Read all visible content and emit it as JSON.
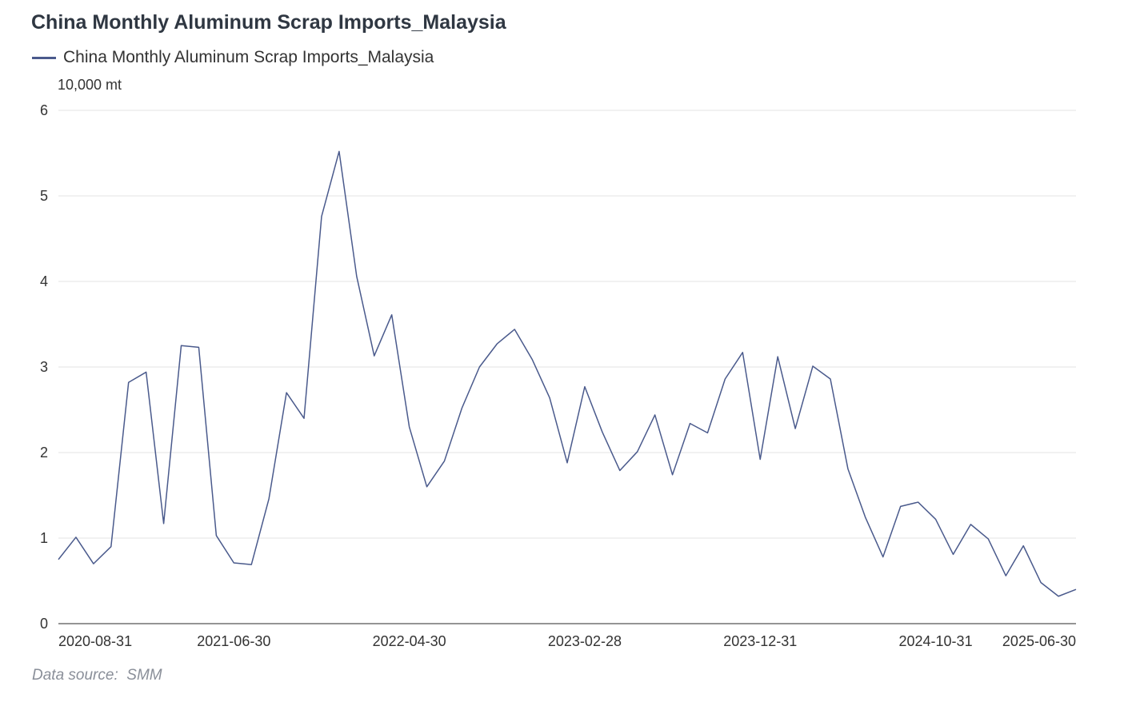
{
  "title": "China Monthly Aluminum Scrap Imports_Malaysia",
  "legend": {
    "label": "China Monthly Aluminum Scrap Imports_Malaysia"
  },
  "y_unit": "10,000 mt",
  "source": {
    "label": "Data source:",
    "value": "SMM"
  },
  "colors": {
    "series": "#4a5a8c",
    "grid": "#e3e3e3",
    "axis": "#555555"
  },
  "chart_data": {
    "type": "line",
    "title": "China Monthly Aluminum Scrap Imports_Malaysia",
    "ylabel": "10,000 mt",
    "ylim": [
      0,
      6
    ],
    "yticks": [
      0,
      1,
      2,
      3,
      4,
      5,
      6
    ],
    "grid": true,
    "legend_position": "top-left",
    "x_tick_labels": [
      "2020-08-31",
      "2021-06-30",
      "2022-04-30",
      "2023-02-28",
      "2023-12-31",
      "2024-10-31",
      "2025-06-30"
    ],
    "x": [
      "2020-08-31",
      "2020-09-30",
      "2020-10-31",
      "2020-11-30",
      "2020-12-31",
      "2021-01-31",
      "2021-02-28",
      "2021-03-31",
      "2021-04-30",
      "2021-05-31",
      "2021-06-30",
      "2021-07-31",
      "2021-08-31",
      "2021-09-30",
      "2021-10-31",
      "2021-11-30",
      "2021-12-31",
      "2022-01-31",
      "2022-02-28",
      "2022-03-31",
      "2022-04-30",
      "2022-05-31",
      "2022-06-30",
      "2022-07-31",
      "2022-08-31",
      "2022-09-30",
      "2022-10-31",
      "2022-11-30",
      "2022-12-31",
      "2023-01-31",
      "2023-02-28",
      "2023-03-31",
      "2023-04-30",
      "2023-05-31",
      "2023-06-30",
      "2023-07-31",
      "2023-08-31",
      "2023-09-30",
      "2023-10-31",
      "2023-11-30",
      "2023-12-31",
      "2024-01-31",
      "2024-02-29",
      "2024-03-31",
      "2024-04-30",
      "2024-05-31",
      "2024-06-30",
      "2024-07-31",
      "2024-08-31",
      "2024-09-30",
      "2024-10-31",
      "2024-11-30",
      "2024-12-31",
      "2025-01-31",
      "2025-02-28",
      "2025-03-31",
      "2025-04-30",
      "2025-05-31",
      "2025-06-30"
    ],
    "series": [
      {
        "name": "China Monthly Aluminum Scrap Imports_Malaysia",
        "values": [
          0.75,
          1.01,
          0.7,
          0.9,
          2.82,
          2.94,
          1.17,
          3.25,
          3.23,
          1.03,
          0.71,
          0.69,
          1.46,
          2.7,
          2.4,
          4.76,
          5.52,
          4.06,
          3.13,
          3.61,
          2.3,
          1.6,
          1.9,
          2.52,
          3.0,
          3.27,
          3.44,
          3.09,
          2.64,
          1.88,
          2.77,
          2.24,
          1.79,
          2.01,
          2.44,
          1.74,
          2.34,
          2.23,
          2.86,
          3.17,
          1.92,
          3.12,
          2.28,
          3.01,
          2.86,
          1.81,
          1.24,
          0.78,
          1.37,
          1.42,
          1.22,
          0.81,
          1.16,
          0.99,
          0.56,
          0.91,
          0.48,
          0.32,
          0.4
        ]
      }
    ]
  }
}
